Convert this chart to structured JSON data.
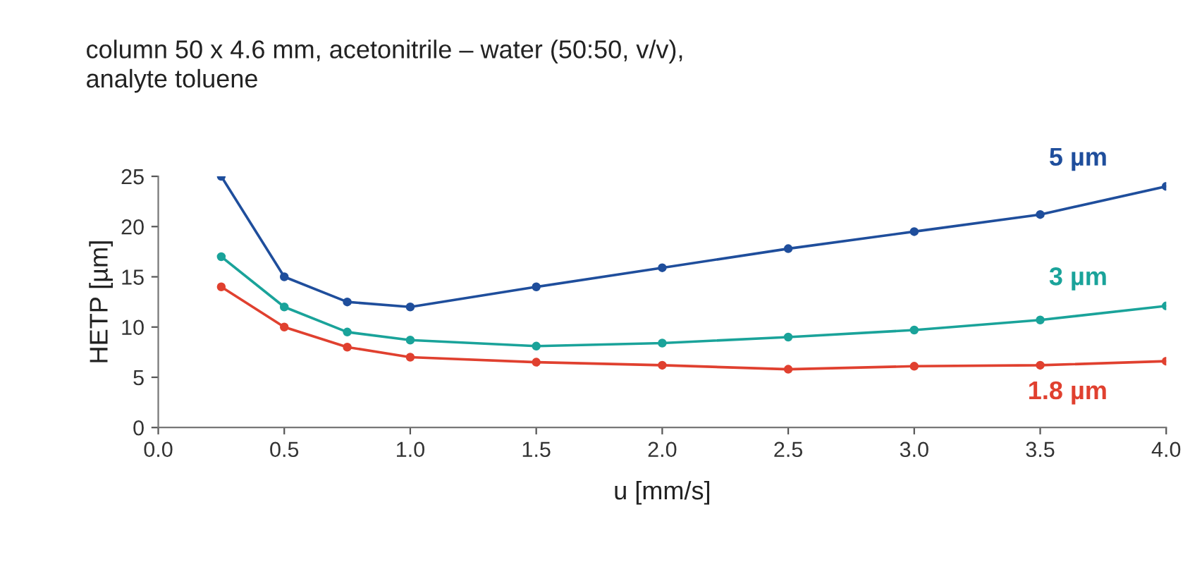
{
  "chart_data": {
    "type": "line",
    "title": "column 50 x 4.6 mm, acetonitrile – water (50:50, v/v),\nanalyte toluene",
    "xlabel": "u [mm/s]",
    "ylabel": "HETP [µm]",
    "x": [
      0.25,
      0.5,
      0.75,
      1.0,
      1.5,
      2.0,
      2.5,
      3.0,
      3.5,
      4.0
    ],
    "series": [
      {
        "name": "5 µm",
        "color": "#1f4e9c",
        "values": [
          25,
          15,
          12.5,
          12,
          14,
          15.9,
          17.8,
          19.5,
          21.2,
          24
        ]
      },
      {
        "name": "3 µm",
        "color": "#1aa39a",
        "values": [
          17,
          12,
          9.5,
          8.7,
          8.1,
          8.4,
          9.0,
          9.7,
          10.7,
          12.1
        ]
      },
      {
        "name": "1.8 µm",
        "color": "#e0402f",
        "values": [
          14,
          10,
          8,
          7,
          6.5,
          6.2,
          5.8,
          6.1,
          6.2,
          6.6
        ]
      }
    ],
    "xlim": [
      0.0,
      4.0
    ],
    "xticks": [
      {
        "value": 0,
        "label": "0.0"
      },
      0.5,
      {
        "value": 1,
        "label": "1.0"
      },
      1.5,
      {
        "value": 2,
        "label": "2.0"
      },
      2.5,
      {
        "value": 3,
        "label": "3.0"
      },
      3.5,
      {
        "value": 4,
        "label": "4.0"
      }
    ],
    "ylim": [
      0,
      25
    ],
    "yticks": [
      0,
      5,
      10,
      15,
      20,
      25
    ],
    "grid": false,
    "legend": false,
    "marker": "circle",
    "line_style": "solid"
  }
}
